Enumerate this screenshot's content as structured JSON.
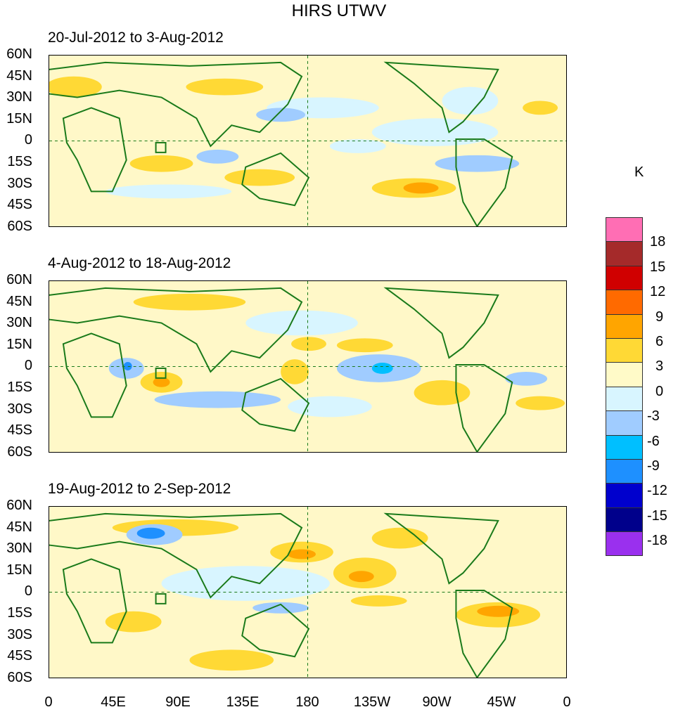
{
  "title": "HIRS UTWV",
  "panels": [
    {
      "label": "20-Jul-2012 to 3-Aug-2012"
    },
    {
      "label": "4-Aug-2012 to 18-Aug-2012"
    },
    {
      "label": "19-Aug-2012 to 2-Sep-2012"
    }
  ],
  "lat_ticks": [
    "60N",
    "45N",
    "30N",
    "15N",
    "0",
    "15S",
    "30S",
    "45S",
    "60S"
  ],
  "lon_ticks": [
    "0",
    "45E",
    "90E",
    "135E",
    "180",
    "135W",
    "90W",
    "45W",
    "0"
  ],
  "colorbar": {
    "unit": "K",
    "labels": [
      "18",
      "15",
      "12",
      "9",
      "6",
      "3",
      "0",
      "-3",
      "-6",
      "-9",
      "-12",
      "-15",
      "-18"
    ],
    "colors": [
      "#ff6eb4",
      "#a52a2a",
      "#d00000",
      "#ff6a00",
      "#ffa500",
      "#ffd935",
      "#fffac8",
      "#d8f5ff",
      "#a0ccff",
      "#00bfff",
      "#1e90ff",
      "#0000cd",
      "#00008b",
      "#9a30ee"
    ]
  }
}
